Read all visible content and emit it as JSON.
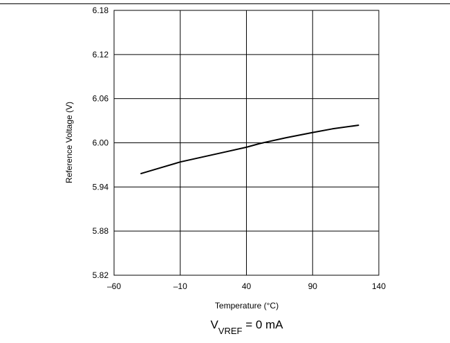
{
  "chart_data": {
    "type": "line",
    "title": "",
    "xlabel": "Temperature (°C)",
    "ylabel": "Reference Voltage (V)",
    "xlim": [
      -60,
      140
    ],
    "ylim": [
      5.82,
      6.18
    ],
    "x_ticks": [
      -60,
      -10,
      40,
      90,
      140
    ],
    "x_tick_labels": [
      "–60",
      "–10",
      "40",
      "90",
      "140"
    ],
    "y_ticks": [
      6.18,
      6.12,
      6.06,
      6.0,
      5.94,
      5.88,
      5.82
    ],
    "y_tick_labels": [
      "6.18",
      "6.12",
      "6.06",
      "6.00",
      "5.94",
      "5.88",
      "5.82"
    ],
    "grid": true,
    "series": [
      {
        "x": [
          -40,
          -25,
          -10,
          5,
          25,
          40,
          50,
          70,
          90,
          105,
          125
        ],
        "y": [
          5.958,
          5.966,
          5.974,
          5.98,
          5.988,
          5.994,
          5.999,
          6.007,
          6.014,
          6.019,
          6.024
        ]
      }
    ],
    "caption": {
      "main": "V",
      "subscript": "VREF",
      "rest": " = 0 mA"
    }
  }
}
